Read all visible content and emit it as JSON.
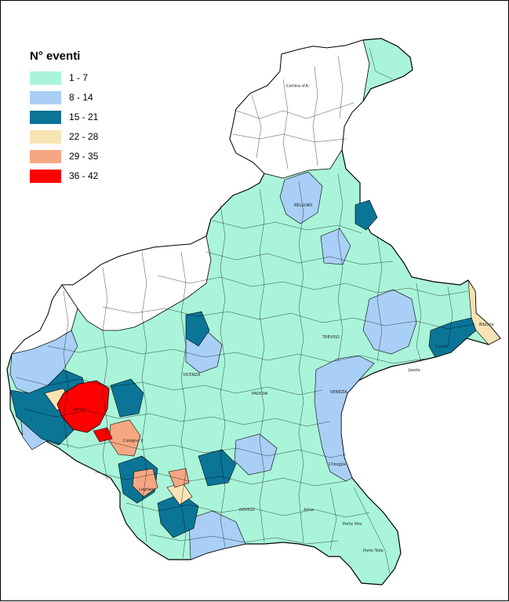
{
  "legend": {
    "title": "N° eventi",
    "classes": [
      {
        "label": "1 - 7",
        "color": "#aaf5d9"
      },
      {
        "label": "8 - 14",
        "color": "#a9cff6"
      },
      {
        "label": "15 - 21",
        "color": "#0b7598"
      },
      {
        "label": "22 - 28",
        "color": "#f8e3b4"
      },
      {
        "label": "29 - 35",
        "color": "#f5a783"
      },
      {
        "label": "36 - 42",
        "color": "#ff0000"
      }
    ]
  },
  "map": {
    "no_data_color": "#ffffff",
    "boundary_color": "#000000",
    "region_labels": [
      "BELLUNO",
      "TREVISO",
      "VICENZA",
      "PADOVA",
      "VENEZIA",
      "ROVIGO",
      "Verona",
      "Chioggia",
      "Porto Tolle",
      "Porto Viro",
      "Cortina d'A.",
      "Cologna V.",
      "Legnago",
      "Adria",
      "Caorle",
      "Jesolo",
      "Bibione"
    ]
  }
}
